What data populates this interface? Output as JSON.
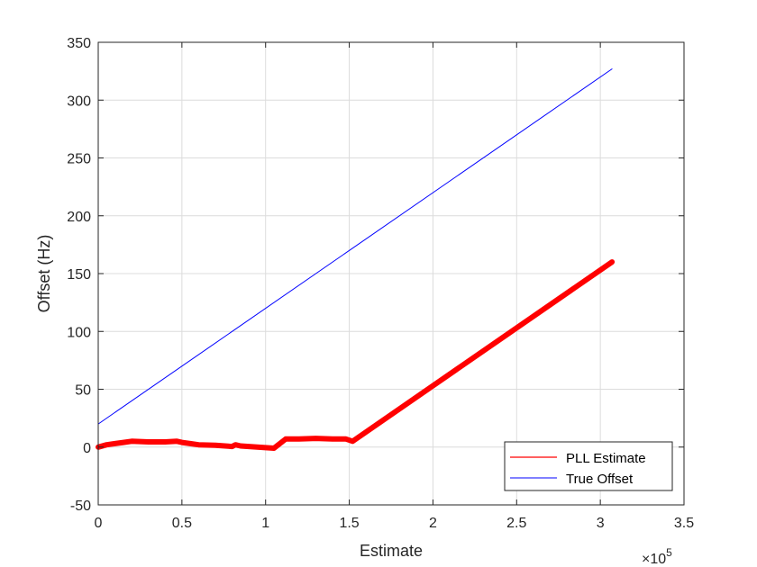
{
  "chart_data": {
    "type": "line",
    "title": "",
    "xlabel": "Estimate",
    "ylabel": "Offset (Hz)",
    "x_exponent_prefix": "×10",
    "x_exponent_power": "5",
    "xlim": [
      0,
      3.5
    ],
    "ylim": [
      -50,
      350
    ],
    "x_scale_factor": 100000,
    "xticks": [
      0,
      0.5,
      1,
      1.5,
      2,
      2.5,
      3,
      3.5
    ],
    "xtick_labels": [
      "0",
      "0.5",
      "1",
      "1.5",
      "2",
      "2.5",
      "3",
      "3.5"
    ],
    "yticks": [
      -50,
      0,
      50,
      100,
      150,
      200,
      250,
      300,
      350
    ],
    "ytick_labels": [
      "-50",
      "0",
      "50",
      "100",
      "150",
      "200",
      "250",
      "300",
      "350"
    ],
    "grid": true,
    "legend_placement": "bottom-right",
    "series": [
      {
        "name": "PLL Estimate",
        "color": "#ff0000",
        "x": [
          0,
          0.05,
          0.1,
          0.15,
          0.2,
          0.3,
          0.4,
          0.47,
          0.5,
          0.55,
          0.6,
          0.7,
          0.8,
          0.82,
          0.85,
          0.9,
          1.0,
          1.05,
          1.12,
          1.2,
          1.3,
          1.4,
          1.48,
          1.52,
          3.07
        ],
        "y": [
          0,
          2,
          3,
          4,
          5,
          4.5,
          4.5,
          5,
          4,
          3,
          2,
          1.5,
          0.5,
          2,
          1,
          0.5,
          -0.5,
          -1,
          7,
          7,
          7.5,
          7,
          7,
          5,
          160
        ]
      },
      {
        "name": "True Offset",
        "color": "#0000ff",
        "x": [
          0,
          3.07
        ],
        "y": [
          20,
          327
        ]
      }
    ]
  }
}
